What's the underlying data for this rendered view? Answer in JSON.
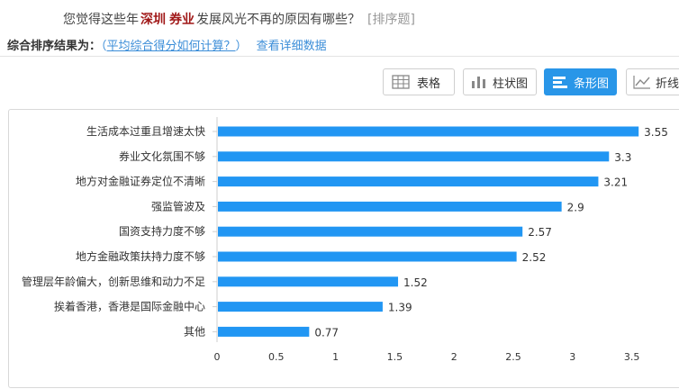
{
  "question": {
    "prefix": "您觉得这些年",
    "hl1": "深圳",
    "hl2": "券业",
    "suffix": "发展风光不再的原因有哪些？",
    "type": "[排序题]"
  },
  "result": {
    "label": "综合排序结果为：",
    "open": "（",
    "link": "平均综合得分如何计算？",
    "close": "）",
    "detail": "查看详细数据"
  },
  "views": {
    "table": "表格",
    "column": "柱状图",
    "bar": "条形图",
    "line": "折线图",
    "active": "bar"
  },
  "colors": {
    "bar": "#2196F3",
    "accent": "#2996e8",
    "highlight": "#a01818"
  },
  "chart_data": {
    "type": "bar",
    "orientation": "horizontal",
    "categories": [
      "生活成本过重且增速太快",
      "券业文化氛围不够",
      "地方对金融证券定位不清晰",
      "强监管波及",
      "国资支持力度不够",
      "地方金融政策扶持力度不够",
      "管理层年龄偏大，创新思维和动力不足",
      "挨着香港，香港是国际金融中心",
      "其他"
    ],
    "values": [
      3.55,
      3.3,
      3.21,
      2.9,
      2.57,
      2.52,
      1.52,
      1.39,
      0.77
    ],
    "value_labels": [
      "3.55",
      "3.3",
      "3.21",
      "2.9",
      "2.57",
      "2.52",
      "1.52",
      "1.39",
      "0.77"
    ],
    "xticks": [
      "0",
      "0.5",
      "1",
      "1.5",
      "2",
      "2.5",
      "3",
      "3.5"
    ],
    "xlim": [
      0,
      4
    ],
    "grid": false,
    "legend": "none"
  }
}
